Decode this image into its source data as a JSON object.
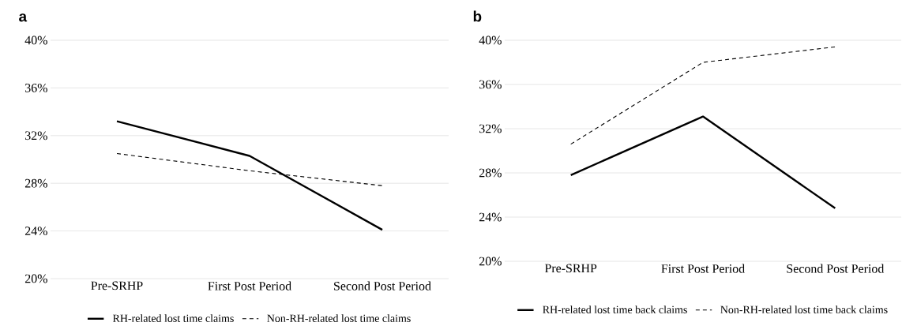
{
  "chart_data": [
    {
      "type": "line",
      "title": "a",
      "categories": [
        "Pre-SRHP",
        "First Post Period",
        "Second Post Period"
      ],
      "series": [
        {
          "name": "RH-related lost time claims",
          "color": "#000000",
          "line_style": "solid",
          "values": [
            33.2,
            30.3,
            24.1
          ]
        },
        {
          "name": "Non-RH-related lost time claims",
          "color": "#000000",
          "line_style": "dashed",
          "values": [
            30.5,
            29.05,
            27.8
          ]
        }
      ],
      "ylim": [
        20,
        40
      ],
      "yticks": [
        {
          "value": 20,
          "label": "20%"
        },
        {
          "value": 24,
          "label": "24%"
        },
        {
          "value": 28,
          "label": "28%"
        },
        {
          "value": 32,
          "label": "32%"
        },
        {
          "value": 36,
          "label": "36%"
        },
        {
          "value": 40,
          "label": "40%"
        }
      ],
      "grid": "y",
      "legend": "bottom"
    },
    {
      "type": "line",
      "title": "b",
      "categories": [
        "Pre-SRHP",
        "First Post Period",
        "Second Post Period"
      ],
      "series": [
        {
          "name": "RH-related lost time back claims",
          "color": "#000000",
          "line_style": "solid",
          "values": [
            27.8,
            33.1,
            24.8
          ]
        },
        {
          "name": "Non-RH-related lost time back claims",
          "color": "#000000",
          "line_style": "dashed",
          "values": [
            30.6,
            38.0,
            39.4
          ]
        }
      ],
      "ylim": [
        20,
        40
      ],
      "yticks": [
        {
          "value": 20,
          "label": "20%"
        },
        {
          "value": 24,
          "label": "24%"
        },
        {
          "value": 28,
          "label": "28%"
        },
        {
          "value": 32,
          "label": "32%"
        },
        {
          "value": 36,
          "label": "36%"
        },
        {
          "value": 40,
          "label": "40%"
        }
      ],
      "grid": "y",
      "legend": "bottom"
    }
  ]
}
